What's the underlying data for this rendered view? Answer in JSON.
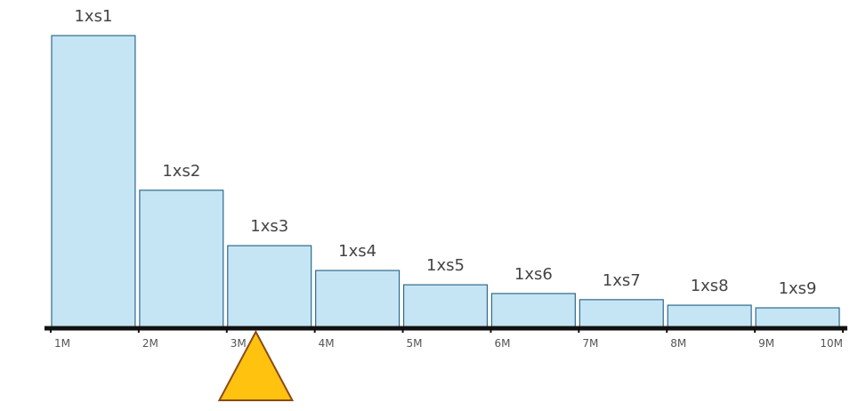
{
  "chart_data": {
    "type": "bar",
    "categories": [
      "1xs1",
      "1xs2",
      "1xs3",
      "1xs4",
      "1xs5",
      "1xs6",
      "1xs7",
      "1xs8",
      "1xs9"
    ],
    "values": [
      100,
      47,
      28,
      19.5,
      14.6,
      11.6,
      9.5,
      7.6,
      6.7
    ],
    "color": "#c5e5f5",
    "ylim": [
      0,
      100
    ],
    "xlim": [
      1,
      10
    ],
    "xticks": [
      {
        "value": 1,
        "label": "1M"
      },
      {
        "value": 2,
        "label": "2M"
      },
      {
        "value": 3,
        "label": "3M"
      },
      {
        "value": 4,
        "label": "4M"
      },
      {
        "value": 5,
        "label": "5M"
      },
      {
        "value": 6,
        "label": "6M"
      },
      {
        "value": 7,
        "label": "7M"
      },
      {
        "value": 8,
        "label": "8M"
      },
      {
        "value": 9,
        "label": "9M"
      },
      {
        "value": 10,
        "label": "10M"
      }
    ],
    "marker_x": 3.33
  }
}
